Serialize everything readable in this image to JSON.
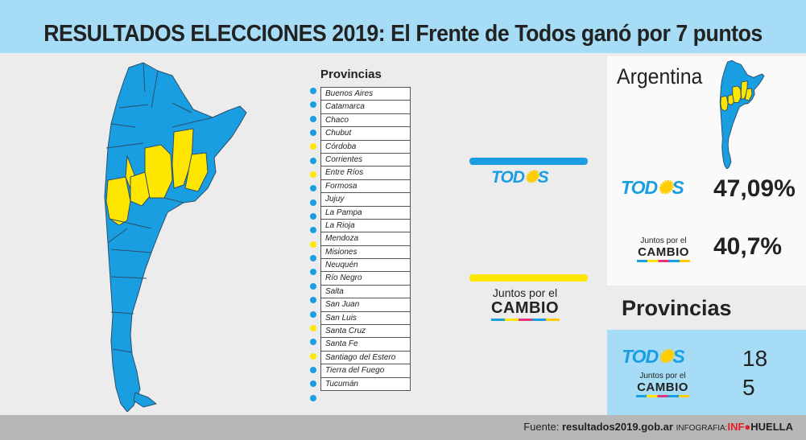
{
  "title": "RESULTADOS ELECCIONES 2019: El Frente de Todos ganó por 7 puntos",
  "provinces_header": "Provincias",
  "provinces": [
    {
      "name": "Buenos Aires",
      "winner": "todos"
    },
    {
      "name": "Catamarca",
      "winner": "todos"
    },
    {
      "name": "Chaco",
      "winner": "todos"
    },
    {
      "name": "Chubut",
      "winner": "todos"
    },
    {
      "name": "Córdoba",
      "winner": "cambio"
    },
    {
      "name": "Corrientes",
      "winner": "todos"
    },
    {
      "name": "Entre Ríos",
      "winner": "cambio"
    },
    {
      "name": "Formosa",
      "winner": "todos"
    },
    {
      "name": "Jujuy",
      "winner": "todos"
    },
    {
      "name": "La Pampa",
      "winner": "todos"
    },
    {
      "name": "La Rioja",
      "winner": "todos"
    },
    {
      "name": "Mendoza",
      "winner": "cambio"
    },
    {
      "name": "Misiones",
      "winner": "todos"
    },
    {
      "name": "Neuquén",
      "winner": "todos"
    },
    {
      "name": "Río Negro",
      "winner": "todos"
    },
    {
      "name": "Salta",
      "winner": "todos"
    },
    {
      "name": "San Juan",
      "winner": "todos"
    },
    {
      "name": "San Luis",
      "winner": "cambio"
    },
    {
      "name": "Santa Cruz",
      "winner": "todos"
    },
    {
      "name": "Santa Fe",
      "winner": "cambio"
    },
    {
      "name": "Santiago del Estero",
      "winner": "todos"
    },
    {
      "name": "Tierra del Fuego",
      "winner": "todos"
    },
    {
      "name": "Tucumán",
      "winner": "todos"
    }
  ],
  "colors": {
    "todos": "#1a9ee2",
    "cambio": "#ffe600"
  },
  "logos": {
    "todos_a": "TOD",
    "todos_b": "S",
    "sun": "✺",
    "cambio_small": "Juntos por el",
    "cambio_big": "CAMBIO"
  },
  "argentina": {
    "label": "Argentina",
    "todos_pct": "47,09%",
    "cambio_pct": "40,7%"
  },
  "provincias_summary": {
    "label": "Provincias",
    "todos_count": "18",
    "cambio_count": "5"
  },
  "footer": {
    "source_label": "Fuente:",
    "source": "resultados2019.gob.ar",
    "infografia": "INFOGRAFIA:",
    "brand_a": "INF",
    "brand_b": "HUELLA"
  }
}
